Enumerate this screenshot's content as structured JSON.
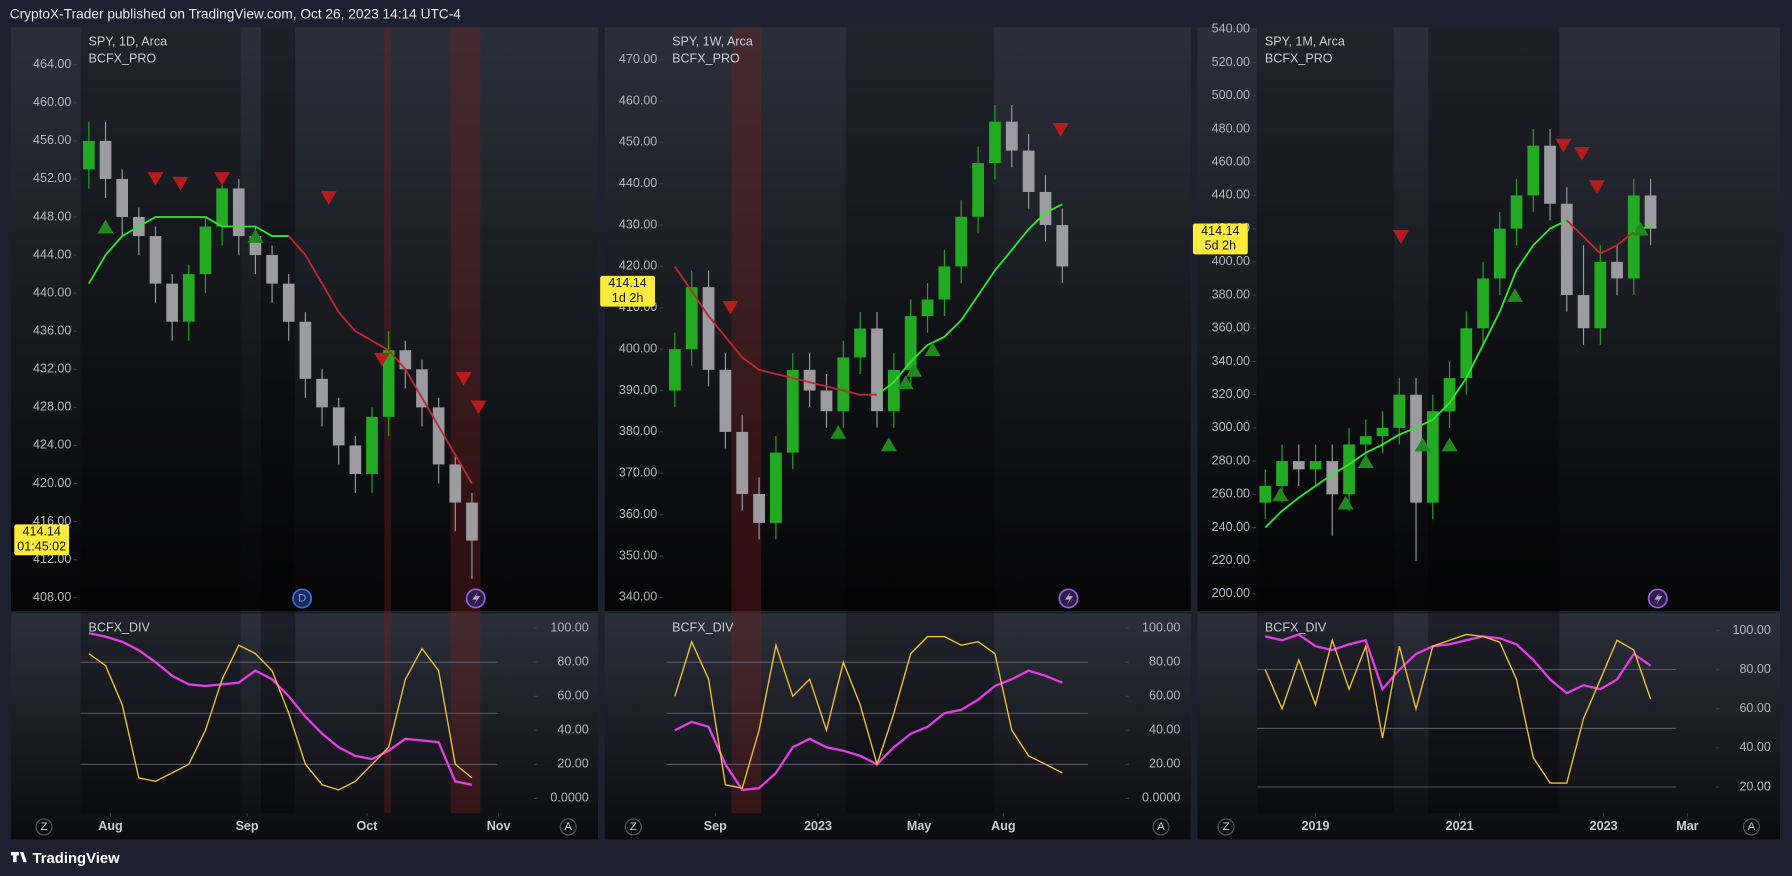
{
  "header": "CryptoX-Trader published on TradingView.com, Oct 26, 2023 14:14 UTC-4",
  "footer": "TradingView",
  "buttons": {
    "z": "Z",
    "a": "A",
    "d": "D"
  },
  "chart_data": [
    {
      "type": "candlestick",
      "title": "SPY, 1D, Arca",
      "subtitle": "BCFX_PRO",
      "open": [
        453,
        456,
        452,
        448,
        446,
        441,
        437,
        442,
        447,
        451,
        446,
        444,
        441,
        437,
        431,
        428,
        424,
        421,
        427,
        434,
        432,
        428,
        422,
        418
      ],
      "high": [
        458,
        458,
        453,
        449,
        447,
        442,
        443,
        448,
        452,
        452,
        447,
        445,
        442,
        438,
        432,
        429,
        425,
        428,
        436,
        435,
        433,
        429,
        423,
        419
      ],
      "low": [
        451,
        450,
        446,
        444,
        439,
        435,
        435,
        440,
        445,
        444,
        442,
        439,
        435,
        429,
        426,
        422,
        419,
        419,
        425,
        430,
        426,
        420,
        415,
        410
      ],
      "close": [
        456,
        452,
        448,
        446,
        441,
        437,
        442,
        447,
        451,
        446,
        444,
        441,
        437,
        431,
        428,
        424,
        421,
        427,
        434,
        432,
        428,
        422,
        418,
        414
      ],
      "ma_up": [
        441,
        444,
        446,
        447,
        448,
        448,
        448,
        448,
        447,
        447,
        447,
        446,
        446,
        null,
        null,
        null,
        null,
        null,
        null,
        null,
        null,
        null,
        null,
        null
      ],
      "ma_down": [
        null,
        null,
        null,
        null,
        null,
        null,
        null,
        null,
        null,
        null,
        null,
        null,
        446,
        444,
        441,
        438,
        436,
        435,
        434,
        432,
        429,
        426,
        423,
        420
      ],
      "buy_signals": {
        "x": [
          1,
          10
        ],
        "y": [
          447,
          446
        ]
      },
      "sell_signals": {
        "x": [
          4,
          5.5,
          8,
          14.4,
          17.6,
          22.5,
          23.4
        ],
        "y": [
          452,
          451.5,
          452,
          450,
          433,
          431,
          428
        ]
      },
      "ylim": [
        406.6,
        467.8
      ],
      "yticks": [
        {
          "value": 408,
          "label": "408.00"
        },
        {
          "value": 412,
          "label": "412.00"
        },
        {
          "value": 416,
          "label": "416.00"
        },
        {
          "value": 420,
          "label": "420.00"
        },
        {
          "value": 424,
          "label": "424.00"
        },
        {
          "value": 428,
          "label": "428.00"
        },
        {
          "value": 432,
          "label": "432.00"
        },
        {
          "value": 436,
          "label": "436.00"
        },
        {
          "value": 440,
          "label": "440.00"
        },
        {
          "value": 444,
          "label": "444.00"
        },
        {
          "value": 448,
          "label": "448.00"
        },
        {
          "value": 452,
          "label": "452.00"
        },
        {
          "value": 456,
          "label": "456.00"
        },
        {
          "value": 460,
          "label": "460.00"
        },
        {
          "value": 464,
          "label": "464.00"
        }
      ],
      "last_price": 414.14,
      "countdown": "01:45:02",
      "up_color": "#22ab22",
      "down_color": "#9c9ca0",
      "ma_up_color": "#2ee82e",
      "ma_down_color": "#c0282f",
      "buy_color": "#1f8a1f",
      "sell_color": "#b71c1c"
    },
    {
      "type": "line",
      "title": "BCFX_DIV",
      "series": [
        {
          "color": "#e83ce8",
          "values": [
            97,
            95,
            92,
            87,
            80,
            72,
            67,
            66,
            67,
            68,
            75,
            70,
            60,
            48,
            38,
            30,
            25,
            23,
            28,
            35,
            34,
            33,
            10,
            8
          ]
        },
        {
          "color": "#f2c12e",
          "values": [
            85,
            78,
            55,
            12,
            10,
            15,
            20,
            40,
            70,
            90,
            85,
            75,
            50,
            20,
            8,
            5,
            10,
            20,
            30,
            70,
            88,
            75,
            20,
            12
          ]
        }
      ],
      "ylim": [
        -8.7,
        108.7
      ],
      "yticks": [
        {
          "value": 100,
          "label": "100.00"
        },
        {
          "value": 80,
          "label": "80.00"
        },
        {
          "value": 60,
          "label": "60.00"
        },
        {
          "value": 40,
          "label": "40.00"
        },
        {
          "value": 20,
          "label": "20.00"
        },
        {
          "value": 0,
          "label": "0.0000"
        }
      ],
      "levels": [
        80,
        50,
        20
      ],
      "xticks": [
        {
          "value": 1.3,
          "label": "Aug"
        },
        {
          "value": 9.5,
          "label": "Sep"
        },
        {
          "value": 16.7,
          "label": "Oct"
        },
        {
          "value": 24.6,
          "label": "Nov"
        }
      ]
    },
    {
      "type": "candlestick",
      "title": "SPY, 1W, Arca",
      "subtitle": "BCFX_PRO",
      "open": [
        390,
        400,
        415,
        395,
        380,
        365,
        358,
        375,
        395,
        390,
        385,
        398,
        405,
        385,
        395,
        408,
        412,
        420,
        432,
        445,
        455,
        448,
        438,
        430
      ],
      "high": [
        404,
        419,
        419,
        399,
        384,
        369,
        379,
        399,
        399,
        394,
        402,
        409,
        409,
        399,
        412,
        416,
        424,
        436,
        449,
        459,
        459,
        452,
        442,
        434
      ],
      "low": [
        386,
        396,
        391,
        376,
        361,
        354,
        354,
        371,
        386,
        381,
        381,
        394,
        381,
        381,
        391,
        404,
        408,
        416,
        428,
        441,
        444,
        434,
        426,
        416
      ],
      "close": [
        400,
        415,
        395,
        380,
        365,
        358,
        375,
        395,
        390,
        385,
        398,
        405,
        385,
        395,
        408,
        412,
        420,
        432,
        445,
        455,
        448,
        438,
        430,
        420
      ],
      "ma_up": [
        null,
        null,
        null,
        null,
        null,
        null,
        null,
        null,
        null,
        null,
        null,
        null,
        389,
        392,
        397,
        401,
        403,
        407,
        413,
        419,
        424,
        429,
        433,
        435
      ],
      "ma_down": [
        420,
        414,
        408,
        403,
        398,
        395,
        394,
        393,
        392,
        391,
        390,
        389,
        389,
        null,
        null,
        null,
        null,
        null,
        null,
        null,
        null,
        null,
        null,
        null
      ],
      "buy_signals": {
        "x": [
          9.7,
          12.7,
          13.7,
          14.2,
          15.3
        ],
        "y": [
          380,
          377,
          392,
          395,
          400
        ]
      },
      "sell_signals": {
        "x": [
          3.3,
          22.9
        ],
        "y": [
          410,
          453
        ]
      },
      "ylim": [
        336.7,
        477.5
      ],
      "yticks": [
        {
          "value": 340,
          "label": "340.00"
        },
        {
          "value": 350,
          "label": "350.00"
        },
        {
          "value": 360,
          "label": "360.00"
        },
        {
          "value": 370,
          "label": "370.00"
        },
        {
          "value": 380,
          "label": "380.00"
        },
        {
          "value": 390,
          "label": "390.00"
        },
        {
          "value": 400,
          "label": "400.00"
        },
        {
          "value": 410,
          "label": "410.00"
        },
        {
          "value": 420,
          "label": "420.00"
        },
        {
          "value": 430,
          "label": "430.00"
        },
        {
          "value": 440,
          "label": "440.00"
        },
        {
          "value": 450,
          "label": "450.00"
        },
        {
          "value": 460,
          "label": "460.00"
        },
        {
          "value": 470,
          "label": "470.00"
        }
      ],
      "last_price": 414.14,
      "countdown": "1d 2h",
      "up_color": "#22ab22",
      "down_color": "#9c9ca0",
      "ma_up_color": "#2ee82e",
      "ma_down_color": "#c0282f",
      "buy_color": "#1f8a1f",
      "sell_color": "#b71c1c"
    },
    {
      "type": "line",
      "title": "BCFX_DIV",
      "series": [
        {
          "color": "#e83ce8",
          "values": [
            40,
            45,
            42,
            20,
            5,
            6,
            15,
            30,
            35,
            30,
            28,
            25,
            20,
            30,
            38,
            42,
            50,
            52,
            58,
            66,
            70,
            75,
            72,
            68
          ]
        },
        {
          "color": "#f2c12e",
          "values": [
            60,
            92,
            70,
            8,
            6,
            40,
            90,
            60,
            70,
            40,
            80,
            55,
            20,
            50,
            85,
            95,
            95,
            90,
            92,
            85,
            40,
            25,
            20,
            15
          ]
        }
      ],
      "ylim": [
        -8.7,
        108.7
      ],
      "yticks": [
        {
          "value": 100,
          "label": "100.00"
        },
        {
          "value": 80,
          "label": "80.00"
        },
        {
          "value": 60,
          "label": "60.00"
        },
        {
          "value": 40,
          "label": "40.00"
        },
        {
          "value": 20,
          "label": "20.00"
        },
        {
          "value": 0,
          "label": "0.0000"
        }
      ],
      "levels": [
        80,
        50,
        20
      ],
      "xticks": [
        {
          "value": 2.4,
          "label": "Sep"
        },
        {
          "value": 8.5,
          "label": "2023"
        },
        {
          "value": 14.5,
          "label": "May"
        },
        {
          "value": 19.5,
          "label": "Aug"
        }
      ]
    },
    {
      "type": "candlestick",
      "title": "SPY, 1M, Arca",
      "subtitle": "BCFX_PRO",
      "open": [
        255,
        265,
        280,
        275,
        280,
        260,
        290,
        295,
        300,
        320,
        255,
        310,
        330,
        360,
        390,
        420,
        440,
        470,
        435,
        380,
        360,
        400,
        390,
        440
      ],
      "high": [
        275,
        290,
        290,
        290,
        290,
        300,
        305,
        310,
        330,
        330,
        320,
        340,
        370,
        400,
        430,
        450,
        480,
        480,
        445,
        410,
        410,
        410,
        450,
        450
      ],
      "low": [
        245,
        255,
        265,
        265,
        235,
        250,
        280,
        285,
        290,
        220,
        245,
        300,
        320,
        350,
        380,
        410,
        430,
        425,
        370,
        350,
        350,
        380,
        380,
        410
      ],
      "close": [
        265,
        280,
        275,
        280,
        260,
        290,
        295,
        300,
        320,
        255,
        310,
        330,
        360,
        390,
        420,
        440,
        470,
        435,
        380,
        360,
        400,
        390,
        440,
        420
      ],
      "ma_up": [
        240,
        250,
        258,
        265,
        272,
        278,
        285,
        290,
        296,
        300,
        305,
        315,
        330,
        350,
        370,
        395,
        410,
        420,
        425,
        null,
        null,
        null,
        418,
        422
      ],
      "ma_down": [
        null,
        null,
        null,
        null,
        null,
        null,
        null,
        null,
        null,
        null,
        null,
        null,
        null,
        null,
        null,
        null,
        null,
        null,
        425,
        415,
        405,
        410,
        418,
        null
      ],
      "buy_signals": {
        "x": [
          0.9,
          4.8,
          6,
          9.4,
          11,
          14.9,
          22.4
        ],
        "y": [
          260,
          255,
          280,
          290,
          290,
          380,
          420
        ]
      },
      "sell_signals": {
        "x": [
          8.1,
          17.8,
          18.9,
          19.8
        ],
        "y": [
          415,
          470,
          465,
          445
        ]
      },
      "ylim": [
        189.7,
        540.5
      ],
      "yticks": [
        {
          "value": 200,
          "label": "200.00"
        },
        {
          "value": 220,
          "label": "220.00"
        },
        {
          "value": 240,
          "label": "240.00"
        },
        {
          "value": 260,
          "label": "260.00"
        },
        {
          "value": 280,
          "label": "280.00"
        },
        {
          "value": 300,
          "label": "300.00"
        },
        {
          "value": 320,
          "label": "320.00"
        },
        {
          "value": 340,
          "label": "340.00"
        },
        {
          "value": 360,
          "label": "360.00"
        },
        {
          "value": 380,
          "label": "380.00"
        },
        {
          "value": 400,
          "label": "400.00"
        },
        {
          "value": 420,
          "label": "420.00"
        },
        {
          "value": 440,
          "label": "440.00"
        },
        {
          "value": 460,
          "label": "460.00"
        },
        {
          "value": 480,
          "label": "480.00"
        },
        {
          "value": 500,
          "label": "500.00"
        },
        {
          "value": 520,
          "label": "520.00"
        },
        {
          "value": 540,
          "label": "540.00"
        }
      ],
      "last_price": 414.14,
      "countdown": "5d 2h",
      "up_color": "#22ab22",
      "down_color": "#9c9ca0",
      "ma_up_color": "#2ee82e",
      "ma_down_color": "#c0282f",
      "buy_color": "#1f8a1f",
      "sell_color": "#b71c1c"
    },
    {
      "type": "line",
      "title": "BCFX_DIV",
      "series": [
        {
          "color": "#e83ce8",
          "values": [
            97,
            95,
            98,
            92,
            90,
            93,
            95,
            70,
            80,
            88,
            92,
            93,
            95,
            97,
            96,
            93,
            85,
            75,
            68,
            72,
            70,
            75,
            88,
            82
          ]
        },
        {
          "color": "#f2c12e",
          "values": [
            80,
            60,
            85,
            62,
            95,
            70,
            92,
            45,
            92,
            60,
            92,
            95,
            98,
            97,
            94,
            75,
            35,
            22,
            22,
            55,
            75,
            95,
            90,
            65
          ]
        }
      ],
      "ylim": [
        6.6,
        108.8
      ],
      "yticks": [
        {
          "value": 100,
          "label": "100.00"
        },
        {
          "value": 80,
          "label": "80.00"
        },
        {
          "value": 60,
          "label": "60.00"
        },
        {
          "value": 40,
          "label": "40.00"
        },
        {
          "value": 20,
          "label": "20.00"
        }
      ],
      "levels": [
        80,
        50,
        20
      ],
      "xticks": [
        {
          "value": 3.0,
          "label": "2019"
        },
        {
          "value": 11.6,
          "label": "2021"
        },
        {
          "value": 20.2,
          "label": "2023"
        },
        {
          "value": 25.2,
          "label": "Mar"
        }
      ]
    }
  ]
}
